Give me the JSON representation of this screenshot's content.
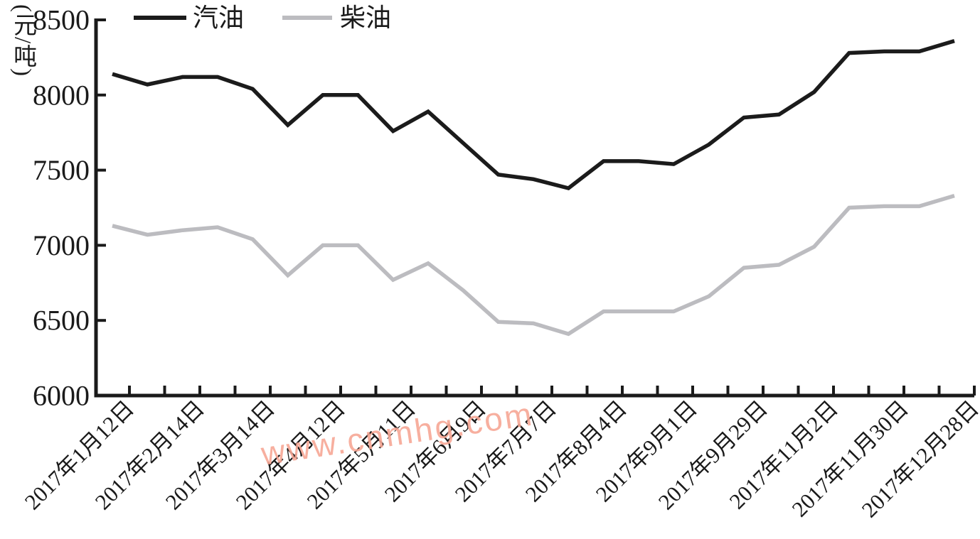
{
  "figure": {
    "y_axis_title": "(元/吨)",
    "watermark": "www.cnmhg.com"
  },
  "legend": {
    "items": [
      {
        "label": "汽油",
        "color": "#1b1b1b"
      },
      {
        "label": "柴油",
        "color": "#bcbcc0"
      }
    ]
  },
  "chart_data": {
    "type": "line",
    "title": "",
    "xlabel": "",
    "ylabel": "(元/吨)",
    "ylim": [
      6000,
      8500
    ],
    "y_ticks": [
      8500,
      8000,
      7500,
      7000,
      6500,
      6000
    ],
    "grid": false,
    "legend_position": "top-left",
    "n_points": 25,
    "x_label_every": 2,
    "x_tick_labels": [
      "2017年1月12日",
      "2017年2月14日",
      "2017年3月14日",
      "2017年4月12日",
      "2017年5月11日",
      "2017年6月9日",
      "2017年7月7日",
      "2017年8月4日",
      "2017年9月1日",
      "2017年9月29日",
      "2017年11月2日",
      "2017年11月30日",
      "2017年12月28日"
    ],
    "series": [
      {
        "name": "汽油",
        "color": "#1b1b1b",
        "values": [
          8140,
          8070,
          8120,
          8120,
          8040,
          7800,
          8000,
          8000,
          7760,
          7890,
          7680,
          7470,
          7440,
          7380,
          7560,
          7560,
          7540,
          7670,
          7850,
          7870,
          8020,
          8280,
          8290,
          8290,
          8360
        ]
      },
      {
        "name": "柴油",
        "color": "#bcbcc0",
        "values": [
          7130,
          7070,
          7100,
          7120,
          7040,
          6800,
          7000,
          7000,
          6770,
          6880,
          6700,
          6490,
          6480,
          6410,
          6560,
          6560,
          6560,
          6660,
          6850,
          6870,
          6990,
          7250,
          7260,
          7260,
          7330
        ]
      }
    ]
  }
}
